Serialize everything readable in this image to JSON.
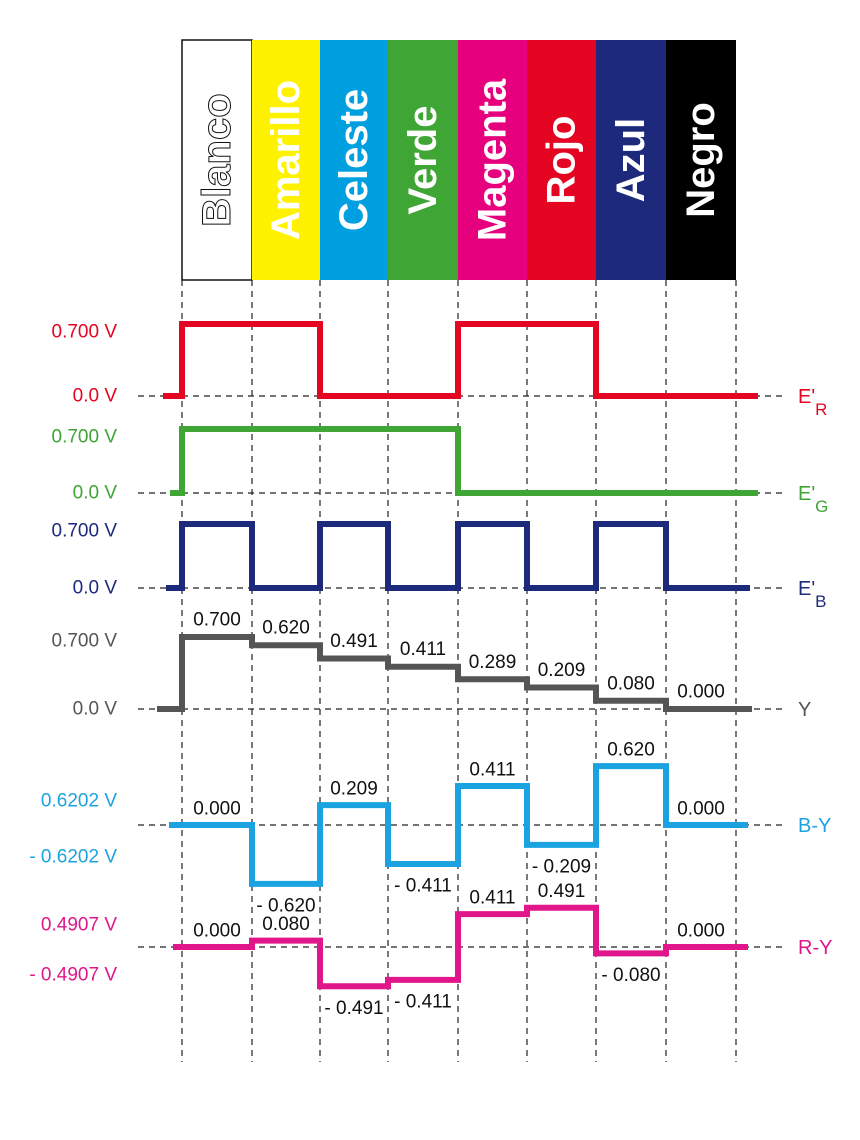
{
  "bars": [
    {
      "label": "Blanco",
      "fill": "#ffffff",
      "text_color": "#111111"
    },
    {
      "label": "Amarillo",
      "fill": "#fff200",
      "text_color": "#ffffff"
    },
    {
      "label": "Celeste",
      "fill": "#00a0e0",
      "text_color": "#ffffff"
    },
    {
      "label": "Verde",
      "fill": "#3fa535",
      "text_color": "#ffffff"
    },
    {
      "label": "Magenta",
      "fill": "#e6007e",
      "text_color": "#ffffff"
    },
    {
      "label": "Rojo",
      "fill": "#e30521",
      "text_color": "#ffffff"
    },
    {
      "label": "Azul",
      "fill": "#1d2a7c",
      "text_color": "#ffffff"
    },
    {
      "label": "Negro",
      "fill": "#000000",
      "text_color": "#ffffff"
    }
  ],
  "signals": [
    {
      "id": "er",
      "name": "E'",
      "sub": "R",
      "color": "#e30521",
      "left_color": "#e30521",
      "top_label": "0.700 V",
      "bottom_label": "0.0 V",
      "values": [
        0.7,
        0.7,
        0,
        0,
        0.7,
        0.7,
        0,
        0
      ],
      "value_labels": []
    },
    {
      "id": "eg",
      "name": "E'",
      "sub": "G",
      "color": "#3fa535",
      "left_color": "#3fa535",
      "top_label": "0.700 V",
      "bottom_label": "0.0 V",
      "values": [
        0.7,
        0.7,
        0.7,
        0.7,
        0,
        0,
        0,
        0
      ],
      "value_labels": []
    },
    {
      "id": "eb",
      "name": "E'",
      "sub": "B",
      "color": "#1d2a7c",
      "left_color": "#1d2a7c",
      "top_label": "0.700 V",
      "bottom_label": "0.0 V",
      "values": [
        0.7,
        0,
        0.7,
        0,
        0.7,
        0,
        0.7,
        0
      ],
      "value_labels": []
    },
    {
      "id": "y",
      "name": "Y",
      "sub": "",
      "color": "#555555",
      "left_color": "#555555",
      "top_label": "0.700 V",
      "bottom_label": "0.0 V",
      "values": [
        0.7,
        0.62,
        0.491,
        0.411,
        0.289,
        0.209,
        0.08,
        0.0
      ],
      "value_labels": [
        "0.700",
        "0.620",
        "0.491",
        "0.411",
        "0.289",
        "0.209",
        "0.080",
        "0.000"
      ]
    },
    {
      "id": "by",
      "name": "B-Y",
      "sub": "",
      "color": "#1aa3e0",
      "left_color": "#1aa3e0",
      "top_label": "0.6202 V",
      "bottom_label": "- 0.6202 V",
      "values": [
        0.0,
        -0.62,
        0.209,
        -0.411,
        0.411,
        -0.209,
        0.62,
        0.0
      ],
      "value_labels": [
        "0.000",
        "- 0.620",
        "0.209",
        "- 0.411",
        "0.411",
        "- 0.209",
        "0.620",
        "0.000"
      ]
    },
    {
      "id": "ry",
      "name": "R-Y",
      "sub": "",
      "color": "#e0168a",
      "left_color": "#e0168a",
      "top_label": "0.4907 V",
      "bottom_label": "- 0.4907 V",
      "values": [
        0.0,
        0.08,
        -0.491,
        -0.411,
        0.411,
        0.491,
        -0.08,
        0.0
      ],
      "value_labels": [
        "0.000",
        "0.080",
        "- 0.491",
        "- 0.411",
        "0.411",
        "0.491",
        "- 0.080",
        "0.000"
      ]
    }
  ]
}
